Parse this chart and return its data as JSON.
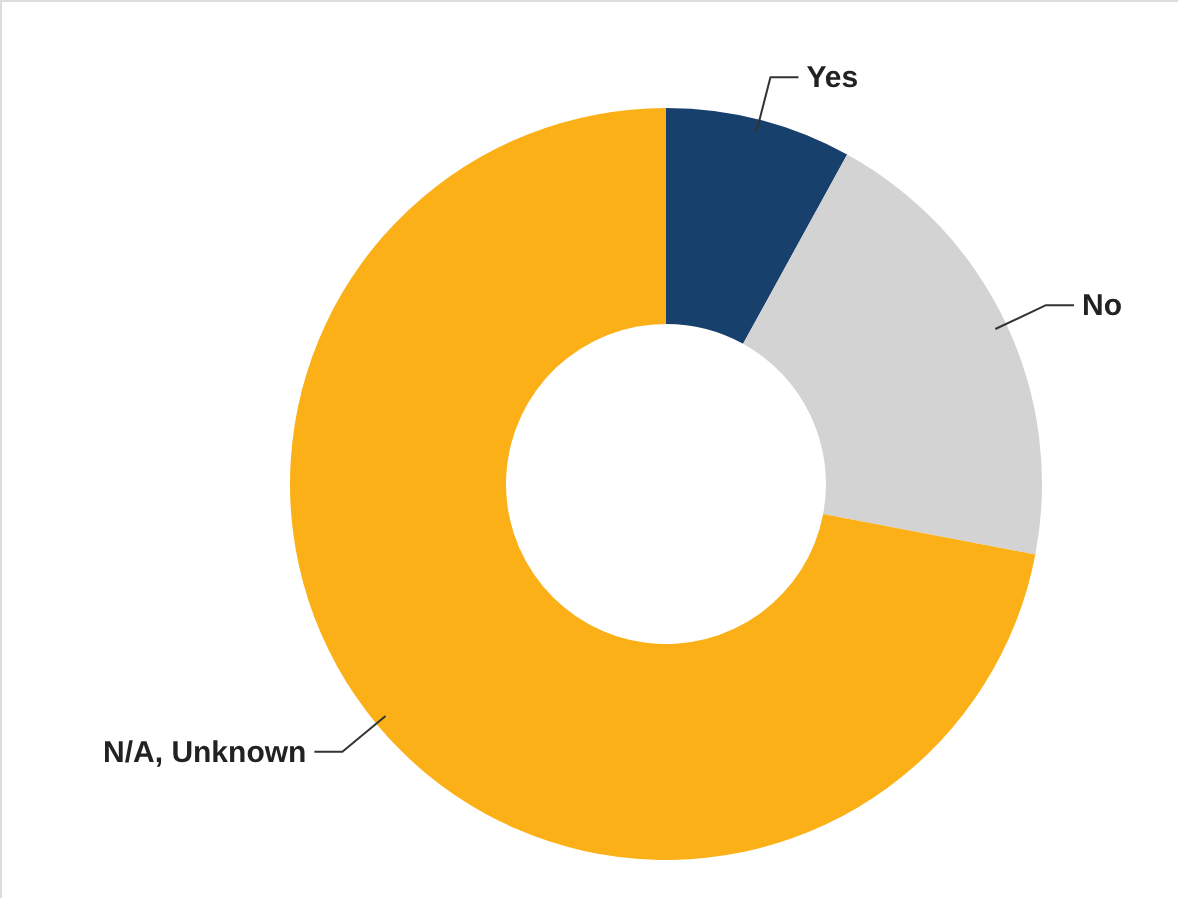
{
  "chart_data": {
    "type": "donut",
    "categories": [
      "Yes",
      "No",
      "N/A, Unknown"
    ],
    "values": [
      8,
      20,
      72
    ],
    "colors": [
      "#17406d",
      "#d3d3d3",
      "#fbb017"
    ]
  }
}
